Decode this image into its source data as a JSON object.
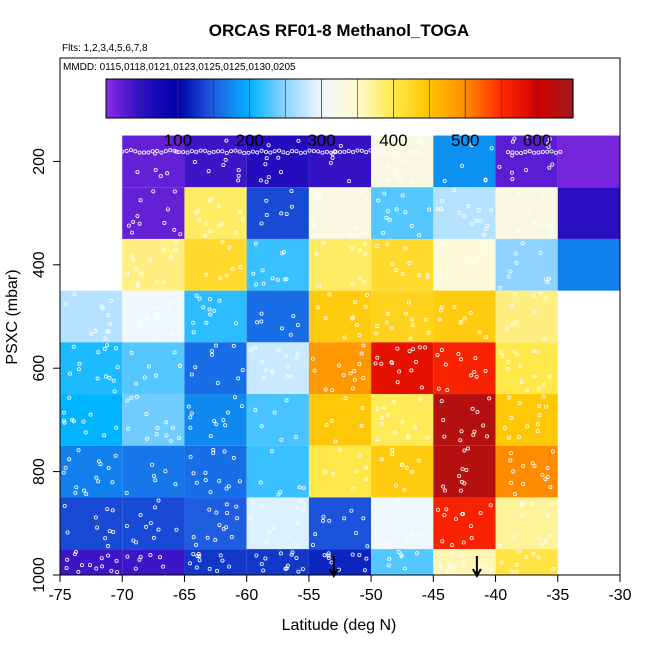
{
  "chart_data": {
    "type": "heatmap",
    "title": "ORCAS RF01-8 Methanol_TOGA",
    "subtitle_flights": "Flts: 1,2,3,4,5,6,7,8",
    "subtitle_dates": "MMDD: 0115,0118,0121,0123,0125,0125,0130,0205",
    "xlabel": "Latitude (deg N)",
    "ylabel": "PSXC (mbar)",
    "xlim": [
      -75,
      -30
    ],
    "ylim": [
      1000,
      0
    ],
    "x_ticks": [
      -75,
      -70,
      -65,
      -60,
      -55,
      -50,
      -45,
      -40,
      -35,
      -30
    ],
    "x_tick_labels": [
      "-75",
      "-70",
      "-65",
      "-60",
      "-55",
      "-50",
      "-45",
      "-40",
      "-35",
      "-30"
    ],
    "y_ticks": [
      200,
      400,
      600,
      800,
      1000
    ],
    "y_tick_labels": [
      "200",
      "400",
      "600",
      "800",
      "1000"
    ],
    "colorbar": {
      "range": [
        0,
        650
      ],
      "ticks": [
        100,
        200,
        300,
        400,
        500,
        600
      ],
      "tick_labels": [
        "100",
        "200",
        "300",
        "400",
        "500",
        "600"
      ]
    },
    "lat_edges": [
      -75,
      -70,
      -65,
      -60,
      -55,
      -50,
      -45,
      -40,
      -35,
      -30
    ],
    "pressure_edges": [
      150,
      250,
      350,
      450,
      550,
      650,
      750,
      850,
      950,
      1000
    ],
    "cells": [
      {
        "lat": -72.5,
        "p": 200,
        "value": null
      },
      {
        "lat": -67.5,
        "p": 200,
        "value": 20
      },
      {
        "lat": -62.5,
        "p": 200,
        "value": 40
      },
      {
        "lat": -57.5,
        "p": 200,
        "value": 60
      },
      {
        "lat": -52.5,
        "p": 200,
        "value": 45
      },
      {
        "lat": -47.5,
        "p": 200,
        "value": 330
      },
      {
        "lat": -42.5,
        "p": 200,
        "value": 180
      },
      {
        "lat": -37.5,
        "p": 200,
        "value": 25
      },
      {
        "lat": -32.5,
        "p": 200,
        "value": 10
      },
      {
        "lat": -72.5,
        "p": 300,
        "value": null
      },
      {
        "lat": -67.5,
        "p": 300,
        "value": 20
      },
      {
        "lat": -62.5,
        "p": 300,
        "value": 390
      },
      {
        "lat": -57.5,
        "p": 300,
        "value": 140
      },
      {
        "lat": -52.5,
        "p": 300,
        "value": 330
      },
      {
        "lat": -47.5,
        "p": 300,
        "value": 230
      },
      {
        "lat": -42.5,
        "p": 300,
        "value": 270
      },
      {
        "lat": -37.5,
        "p": 300,
        "value": 330
      },
      {
        "lat": -32.5,
        "p": 300,
        "value": 50
      },
      {
        "lat": -72.5,
        "p": 400,
        "value": null
      },
      {
        "lat": -67.5,
        "p": 400,
        "value": 380
      },
      {
        "lat": -62.5,
        "p": 400,
        "value": 420
      },
      {
        "lat": -57.5,
        "p": 400,
        "value": 220
      },
      {
        "lat": -52.5,
        "p": 400,
        "value": 390
      },
      {
        "lat": -47.5,
        "p": 400,
        "value": 420
      },
      {
        "lat": -42.5,
        "p": 400,
        "value": 340
      },
      {
        "lat": -37.5,
        "p": 400,
        "value": 250
      },
      {
        "lat": -32.5,
        "p": 400,
        "value": 170
      },
      {
        "lat": -72.5,
        "p": 500,
        "value": 270
      },
      {
        "lat": -67.5,
        "p": 500,
        "value": 300
      },
      {
        "lat": -62.5,
        "p": 500,
        "value": 215
      },
      {
        "lat": -57.5,
        "p": 500,
        "value": 160
      },
      {
        "lat": -52.5,
        "p": 500,
        "value": 440
      },
      {
        "lat": -47.5,
        "p": 500,
        "value": 430
      },
      {
        "lat": -42.5,
        "p": 500,
        "value": 440
      },
      {
        "lat": -37.5,
        "p": 500,
        "value": 380
      },
      {
        "lat": -32.5,
        "p": 500,
        "value": null
      },
      {
        "lat": -72.5,
        "p": 600,
        "value": 210
      },
      {
        "lat": -67.5,
        "p": 600,
        "value": 230
      },
      {
        "lat": -62.5,
        "p": 600,
        "value": 160
      },
      {
        "lat": -57.5,
        "p": 600,
        "value": 280
      },
      {
        "lat": -52.5,
        "p": 600,
        "value": 490
      },
      {
        "lat": -47.5,
        "p": 600,
        "value": 580
      },
      {
        "lat": -42.5,
        "p": 600,
        "value": 560
      },
      {
        "lat": -37.5,
        "p": 600,
        "value": 400
      },
      {
        "lat": -32.5,
        "p": 600,
        "value": null
      },
      {
        "lat": -72.5,
        "p": 700,
        "value": 200
      },
      {
        "lat": -67.5,
        "p": 700,
        "value": 240
      },
      {
        "lat": -62.5,
        "p": 700,
        "value": 175
      },
      {
        "lat": -57.5,
        "p": 700,
        "value": 225
      },
      {
        "lat": -52.5,
        "p": 700,
        "value": 445
      },
      {
        "lat": -47.5,
        "p": 700,
        "value": 395
      },
      {
        "lat": -42.5,
        "p": 700,
        "value": 630
      },
      {
        "lat": -37.5,
        "p": 700,
        "value": 445
      },
      {
        "lat": -32.5,
        "p": 700,
        "value": null
      },
      {
        "lat": -72.5,
        "p": 800,
        "value": 170
      },
      {
        "lat": -67.5,
        "p": 800,
        "value": 165
      },
      {
        "lat": -62.5,
        "p": 800,
        "value": 160
      },
      {
        "lat": -57.5,
        "p": 800,
        "value": 220
      },
      {
        "lat": -52.5,
        "p": 800,
        "value": 400
      },
      {
        "lat": -47.5,
        "p": 800,
        "value": 440
      },
      {
        "lat": -42.5,
        "p": 800,
        "value": 630
      },
      {
        "lat": -37.5,
        "p": 800,
        "value": 500
      },
      {
        "lat": -32.5,
        "p": 800,
        "value": null
      },
      {
        "lat": -72.5,
        "p": 900,
        "value": 140
      },
      {
        "lat": -67.5,
        "p": 900,
        "value": 140
      },
      {
        "lat": -62.5,
        "p": 900,
        "value": 150
      },
      {
        "lat": -57.5,
        "p": 900,
        "value": 290
      },
      {
        "lat": -52.5,
        "p": 900,
        "value": 145
      },
      {
        "lat": -47.5,
        "p": 900,
        "value": 300
      },
      {
        "lat": -42.5,
        "p": 900,
        "value": 560
      },
      {
        "lat": -37.5,
        "p": 900,
        "value": 370
      },
      {
        "lat": -32.5,
        "p": 900,
        "value": null
      },
      {
        "lat": -72.5,
        "p": 975,
        "value": 40
      },
      {
        "lat": -67.5,
        "p": 975,
        "value": 40
      },
      {
        "lat": -62.5,
        "p": 975,
        "value": 130
      },
      {
        "lat": -57.5,
        "p": 975,
        "value": 130
      },
      {
        "lat": -52.5,
        "p": 975,
        "value": 120
      },
      {
        "lat": -47.5,
        "p": 975,
        "value": 230
      },
      {
        "lat": -42.5,
        "p": 975,
        "value": 360
      },
      {
        "lat": -37.5,
        "p": 975,
        "value": 405
      },
      {
        "lat": -32.5,
        "p": 975,
        "value": null
      }
    ],
    "annotations": {
      "arrows": [
        {
          "lat": -53.0,
          "description": "down arrow marker at surface"
        },
        {
          "lat": -41.5,
          "description": "down arrow marker at surface"
        }
      ],
      "sample_points": "white open circles marking individual measurements"
    }
  }
}
